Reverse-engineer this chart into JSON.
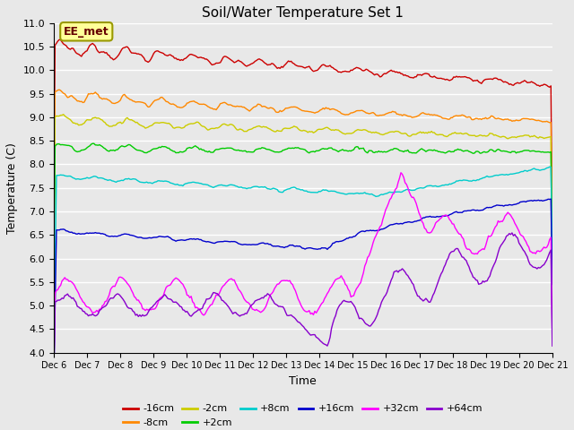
{
  "title": "Soil/Water Temperature Set 1",
  "xlabel": "Time",
  "ylabel": "Temperature (C)",
  "ylim": [
    4.0,
    11.0
  ],
  "xlim": [
    0,
    15
  ],
  "yticks": [
    4.0,
    4.5,
    5.0,
    5.5,
    6.0,
    6.5,
    7.0,
    7.5,
    8.0,
    8.5,
    9.0,
    9.5,
    10.0,
    10.5,
    11.0
  ],
  "xtick_labels": [
    "Dec 6",
    "Dec 7",
    "Dec 8",
    "Dec 9",
    "Dec 10",
    "Dec 11",
    "Dec 12",
    "Dec 13",
    "Dec 14",
    "Dec 15",
    "Dec 16",
    "Dec 17",
    "Dec 18",
    "Dec 19",
    "Dec 20",
    "Dec 21"
  ],
  "background_color": "#e8e8e8",
  "grid_color": "#ffffff",
  "annotation_text": "EE_met",
  "annotation_bg": "#ffff99",
  "annotation_border": "#999900",
  "series": [
    {
      "label": "-16cm",
      "color": "#cc0000"
    },
    {
      "label": "-8cm",
      "color": "#ff8800"
    },
    {
      "label": "-2cm",
      "color": "#cccc00"
    },
    {
      "label": "+2cm",
      "color": "#00cc00"
    },
    {
      "label": "+8cm",
      "color": "#00cccc"
    },
    {
      "label": "+16cm",
      "color": "#0000cc"
    },
    {
      "label": "+32cm",
      "color": "#ff00ff"
    },
    {
      "label": "+64cm",
      "color": "#8800cc"
    }
  ],
  "legend_ncol_row1": 6,
  "legend_ncol_row2": 2
}
